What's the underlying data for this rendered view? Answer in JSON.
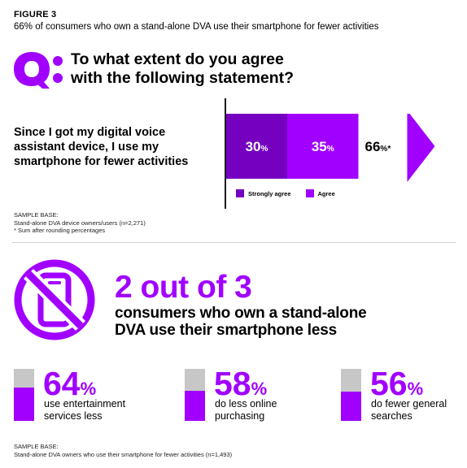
{
  "figure": {
    "label": "FIGURE 3",
    "subtitle": "66% of consumers who own a stand-alone DVA use their smartphone for fewer activities"
  },
  "question": {
    "icon": "q-icon",
    "line1": "To what extent do you agree",
    "line2": "with the following statement?"
  },
  "statement": "Since I got my digital voice assistant device, I use my smartphone for fewer activities",
  "chart_data": {
    "type": "bar",
    "orientation": "horizontal-stacked",
    "categories": [
      "Since I got my digital voice assistant device, I use my smartphone for fewer activities"
    ],
    "series": [
      {
        "name": "Strongly agree",
        "values": [
          30
        ],
        "label": "30",
        "color": "#7500c0"
      },
      {
        "name": "Agree",
        "values": [
          35
        ],
        "label": "35",
        "color": "#a100ff"
      }
    ],
    "total": {
      "value": 66,
      "label": "66",
      "note": "*"
    },
    "unit": "%",
    "legend": "bottom"
  },
  "sample1": {
    "heading": "SAMPLE BASE:",
    "base": "Stand-alone DVA device owners/users (n=2,271)",
    "note": "* Sum after rounding percentages"
  },
  "highlight": {
    "icon": "no-phone-icon",
    "stat": "2 out of 3",
    "line1": "consumers who own a stand-alone",
    "line2": "DVA use their smartphone less"
  },
  "stats": [
    {
      "value": 64,
      "num": "64",
      "pct": "%",
      "line1": "use entertainment",
      "line2": "services less"
    },
    {
      "value": 58,
      "num": "58",
      "pct": "%",
      "line1": "do less online",
      "line2": "purchasing"
    },
    {
      "value": 56,
      "num": "56",
      "pct": "%",
      "line1": "do fewer general",
      "line2": "searches"
    }
  ],
  "sample2": {
    "heading": "SAMPLE BASE:",
    "base": "Stand-alone DVA owners who use their smartphone for fewer activities (n=1,493)"
  },
  "colors": {
    "accent": "#a100ff",
    "dark_purple": "#7500c0",
    "grey": "#c7c7c7"
  }
}
